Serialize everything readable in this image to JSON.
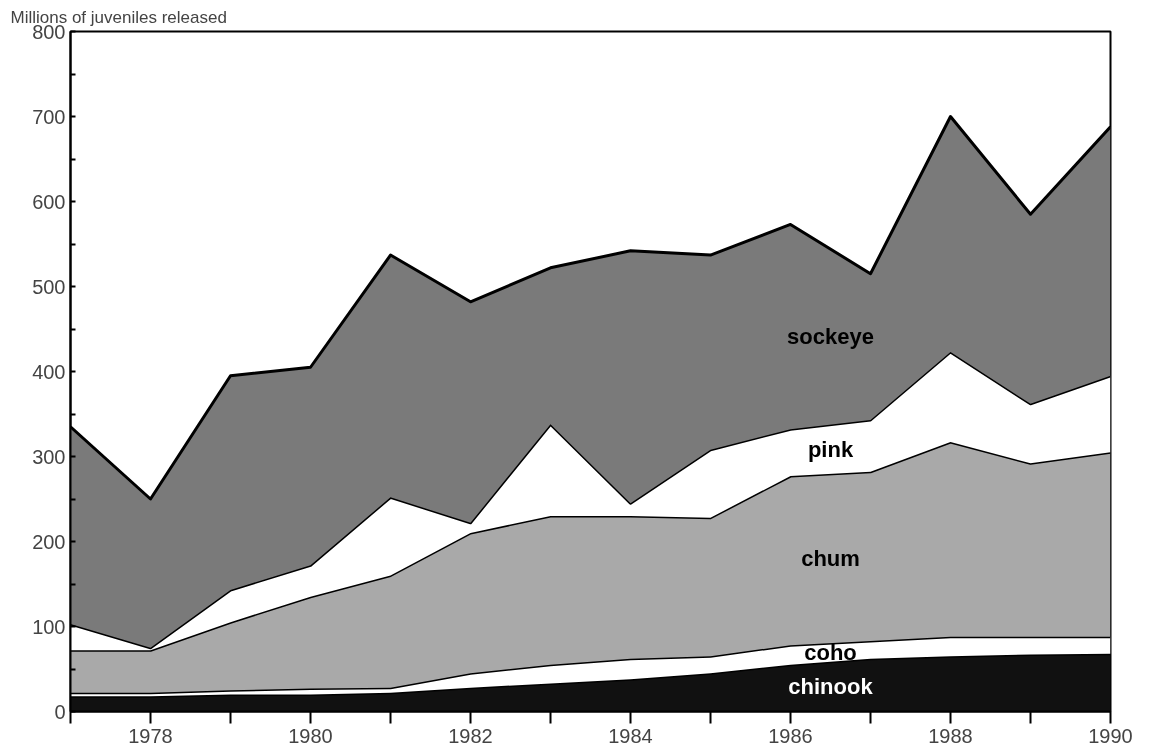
{
  "chart_data": {
    "type": "area",
    "stacked": true,
    "ylabel": "Millions of juveniles released",
    "x": [
      1977,
      1978,
      1979,
      1980,
      1981,
      1982,
      1983,
      1984,
      1985,
      1986,
      1987,
      1988,
      1989,
      1990
    ],
    "series": [
      {
        "name": "chinook",
        "color": "#111111",
        "values": [
          18,
          18,
          20,
          20,
          22,
          28,
          33,
          38,
          45,
          55,
          62,
          65,
          67,
          68
        ]
      },
      {
        "name": "coho",
        "color": "#ffffff",
        "values": [
          4,
          4,
          5,
          7,
          6,
          17,
          22,
          24,
          20,
          23,
          21,
          23,
          21,
          20
        ]
      },
      {
        "name": "chum",
        "color": "#a9a9a9",
        "values": [
          50,
          50,
          80,
          108,
          132,
          165,
          175,
          168,
          163,
          199,
          199,
          229,
          204,
          217
        ]
      },
      {
        "name": "pink",
        "color": "#ffffff",
        "values": [
          31,
          3,
          38,
          37,
          92,
          12,
          108,
          15,
          80,
          55,
          61,
          106,
          70,
          90
        ]
      },
      {
        "name": "sockeye",
        "color": "#7a7a7a",
        "values": [
          232,
          175,
          252,
          233,
          285,
          260,
          184,
          297,
          229,
          241,
          172,
          277,
          223,
          293
        ]
      }
    ],
    "xlim": [
      1977,
      1990
    ],
    "xticks": [
      {
        "value": 1977,
        "label": null
      },
      1978,
      {
        "value": 1979,
        "label": null
      },
      1980,
      {
        "value": 1981,
        "label": null
      },
      1982,
      {
        "value": 1983,
        "label": null
      },
      1984,
      {
        "value": 1985,
        "label": null
      },
      1986,
      {
        "value": 1987,
        "label": null
      },
      1988,
      {
        "value": 1989,
        "label": null
      },
      1990
    ],
    "ylim": [
      0,
      800
    ],
    "yticks": [
      0,
      {
        "value": 50,
        "label": null
      },
      100,
      {
        "value": 150,
        "label": null
      },
      200,
      {
        "value": 250,
        "label": null
      },
      300,
      {
        "value": 350,
        "label": null
      },
      400,
      {
        "value": 450,
        "label": null
      },
      500,
      {
        "value": 550,
        "label": null
      },
      600,
      {
        "value": 650,
        "label": null
      },
      700,
      {
        "value": 750,
        "label": null
      },
      800
    ],
    "grid": false
  }
}
